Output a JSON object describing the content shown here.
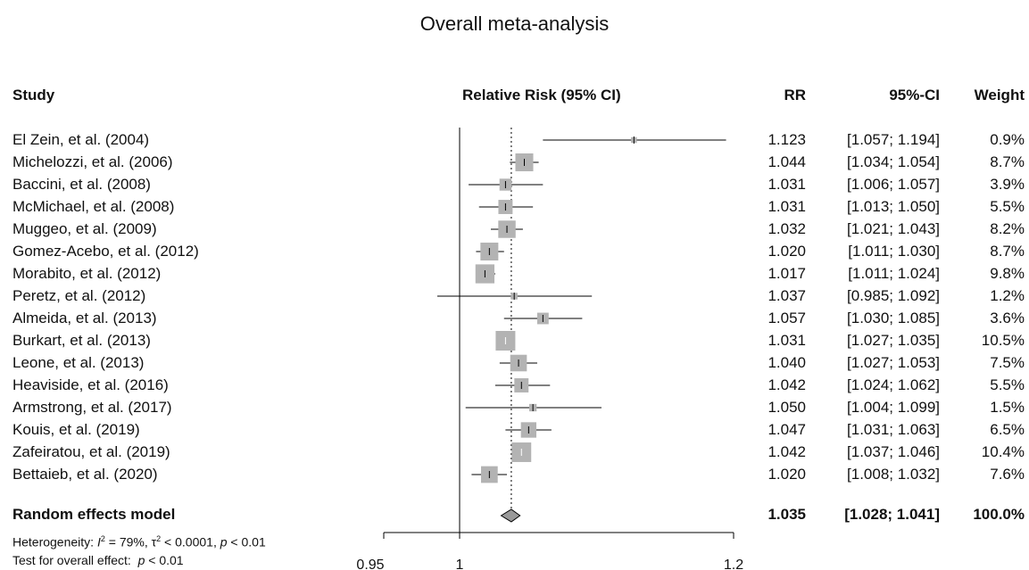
{
  "chart_data": {
    "type": "forest",
    "title": "Overall meta-analysis",
    "headers": {
      "study": "Study",
      "plot": "Relative Risk (95% CI)",
      "rr": "RR",
      "ci": "95%-CI",
      "weight": "Weight"
    },
    "studies": [
      {
        "name": "El Zein, et al. (2004)",
        "rr": 1.123,
        "lo": 1.057,
        "hi": 1.194,
        "rr_text": "1.123",
        "ci_text": "[1.057; 1.194]",
        "weight_text": "0.9%",
        "weight": 0.9
      },
      {
        "name": "Michelozzi, et al. (2006)",
        "rr": 1.044,
        "lo": 1.034,
        "hi": 1.054,
        "rr_text": "1.044",
        "ci_text": "[1.034; 1.054]",
        "weight_text": "8.7%",
        "weight": 8.7
      },
      {
        "name": "Baccini, et al. (2008)",
        "rr": 1.031,
        "lo": 1.006,
        "hi": 1.057,
        "rr_text": "1.031",
        "ci_text": "[1.006; 1.057]",
        "weight_text": "3.9%",
        "weight": 3.9
      },
      {
        "name": "McMichael, et al. (2008)",
        "rr": 1.031,
        "lo": 1.013,
        "hi": 1.05,
        "rr_text": "1.031",
        "ci_text": "[1.013; 1.050]",
        "weight_text": "5.5%",
        "weight": 5.5
      },
      {
        "name": "Muggeo, et al. (2009)",
        "rr": 1.032,
        "lo": 1.021,
        "hi": 1.043,
        "rr_text": "1.032",
        "ci_text": "[1.021; 1.043]",
        "weight_text": "8.2%",
        "weight": 8.2
      },
      {
        "name": "Gomez-Acebo, et al. (2012)",
        "rr": 1.02,
        "lo": 1.011,
        "hi": 1.03,
        "rr_text": "1.020",
        "ci_text": "[1.011; 1.030]",
        "weight_text": "8.7%",
        "weight": 8.7
      },
      {
        "name": "Morabito, et al. (2012)",
        "rr": 1.017,
        "lo": 1.011,
        "hi": 1.024,
        "rr_text": "1.017",
        "ci_text": "[1.011; 1.024]",
        "weight_text": "9.8%",
        "weight": 9.8
      },
      {
        "name": "Peretz, et al. (2012)",
        "rr": 1.037,
        "lo": 0.985,
        "hi": 1.092,
        "rr_text": "1.037",
        "ci_text": "[0.985; 1.092]",
        "weight_text": "1.2%",
        "weight": 1.2
      },
      {
        "name": "Almeida, et al. (2013)",
        "rr": 1.057,
        "lo": 1.03,
        "hi": 1.085,
        "rr_text": "1.057",
        "ci_text": "[1.030; 1.085]",
        "weight_text": "3.6%",
        "weight": 3.6
      },
      {
        "name": "Burkart, et al. (2013)",
        "rr": 1.031,
        "lo": 1.027,
        "hi": 1.035,
        "rr_text": "1.031",
        "ci_text": "[1.027; 1.035]",
        "weight_text": "10.5%",
        "weight": 10.5
      },
      {
        "name": "Leone, et al. (2013)",
        "rr": 1.04,
        "lo": 1.027,
        "hi": 1.053,
        "rr_text": "1.040",
        "ci_text": "[1.027; 1.053]",
        "weight_text": "7.5%",
        "weight": 7.5
      },
      {
        "name": "Heaviside, et al. (2016)",
        "rr": 1.042,
        "lo": 1.024,
        "hi": 1.062,
        "rr_text": "1.042",
        "ci_text": "[1.024; 1.062]",
        "weight_text": "5.5%",
        "weight": 5.5
      },
      {
        "name": "Armstrong, et al. (2017)",
        "rr": 1.05,
        "lo": 1.004,
        "hi": 1.099,
        "rr_text": "1.050",
        "ci_text": "[1.004; 1.099]",
        "weight_text": "1.5%",
        "weight": 1.5
      },
      {
        "name": "Kouis, et al. (2019)",
        "rr": 1.047,
        "lo": 1.031,
        "hi": 1.063,
        "rr_text": "1.047",
        "ci_text": "[1.031; 1.063]",
        "weight_text": "6.5%",
        "weight": 6.5
      },
      {
        "name": "Zafeiratou, et al. (2019)",
        "rr": 1.042,
        "lo": 1.037,
        "hi": 1.046,
        "rr_text": "1.042",
        "ci_text": "[1.037; 1.046]",
        "weight_text": "10.4%",
        "weight": 10.4
      },
      {
        "name": "Bettaieb, et al. (2020)",
        "rr": 1.02,
        "lo": 1.008,
        "hi": 1.032,
        "rr_text": "1.020",
        "ci_text": "[1.008; 1.032]",
        "weight_text": "7.6%",
        "weight": 7.6
      }
    ],
    "pooled": {
      "name": "Random effects model",
      "rr": 1.035,
      "lo": 1.028,
      "hi": 1.041,
      "rr_text": "1.035",
      "ci_text": "[1.028; 1.041]",
      "weight_text": "100.0%"
    },
    "heterogeneity_text": {
      "prefix": "Heterogeneity: ",
      "i2_symbol": "I",
      "i2_exp": "2",
      "i2_rest": " = 79%, ",
      "tau_symbol": "τ",
      "tau_exp": "2",
      "tau_rest": " < 0.0001, ",
      "p_symbol": "p",
      "p_rest": " < 0.01"
    },
    "overall_effect_text": {
      "prefix": "Test for overall effect:  ",
      "p_symbol": "p",
      "p_rest": " < 0.01"
    },
    "x_axis": {
      "scale": "log",
      "range": [
        0.95,
        1.2
      ],
      "null_value": 1,
      "ticks": [
        {
          "value": 0.95,
          "label": "0.95"
        },
        {
          "value": 1,
          "label": "1"
        },
        {
          "value": 1.2,
          "label": "1.2"
        }
      ]
    },
    "colors": {
      "box": "#b3b3b3",
      "line": "#000000",
      "diamond": "#999999"
    }
  }
}
